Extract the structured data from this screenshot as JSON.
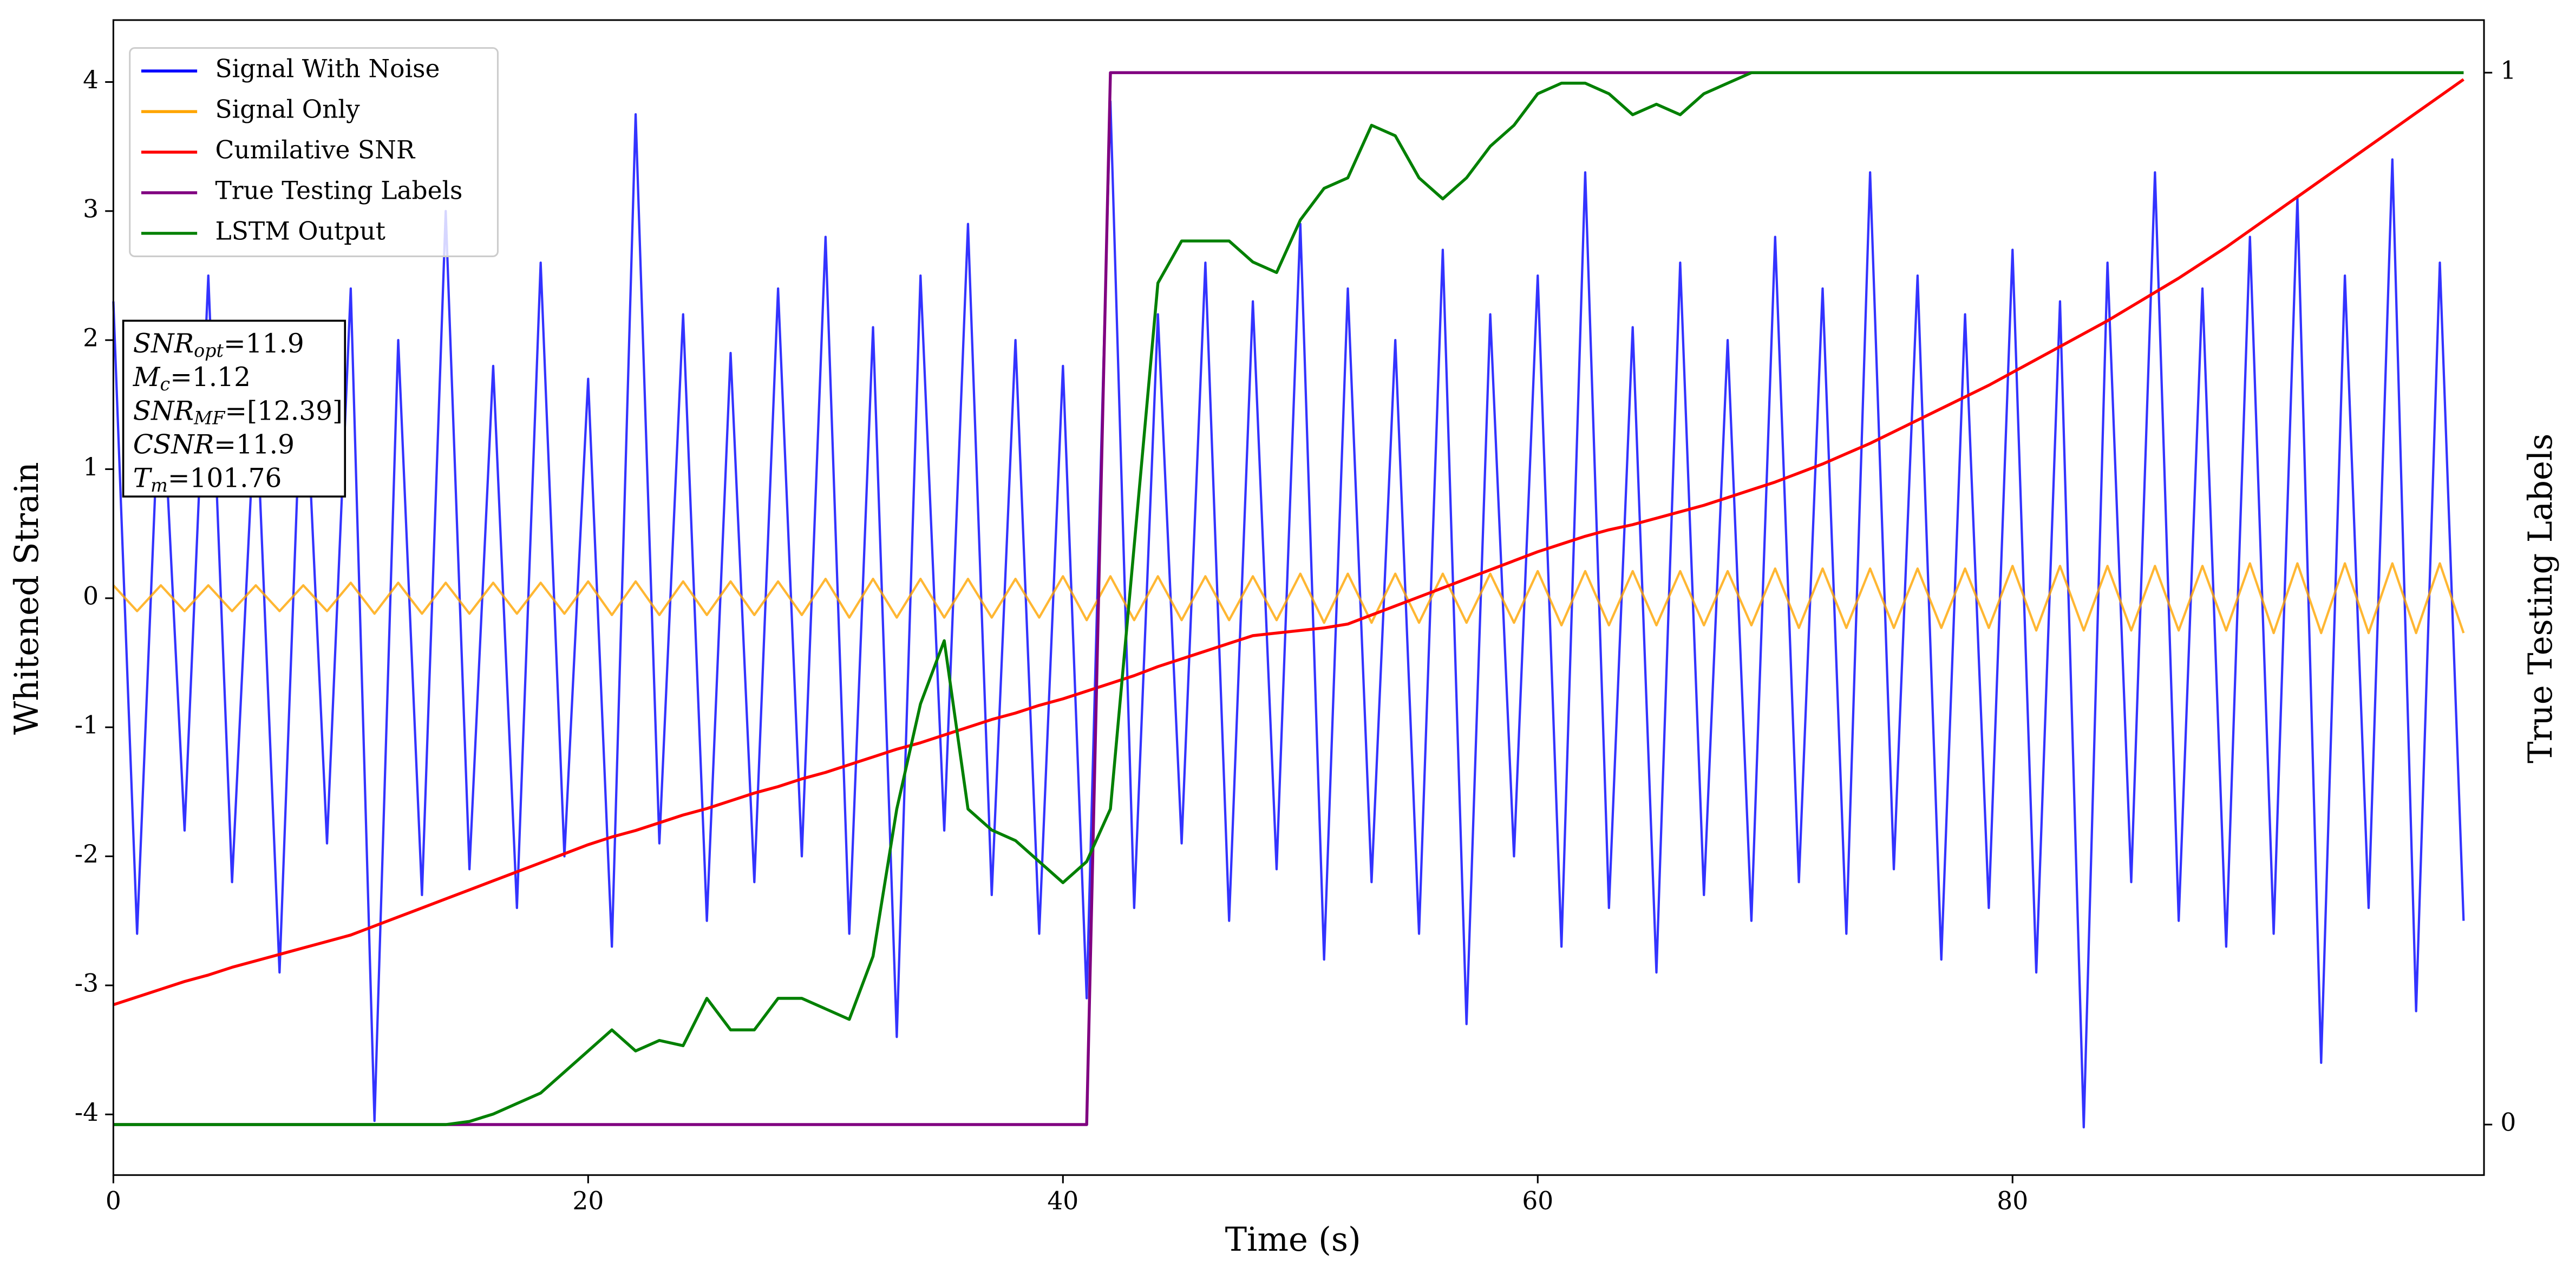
{
  "chart_data": {
    "type": "line",
    "xlabel": "Time (s)",
    "ylabel": "Whitened Strain",
    "y2label": "True Testing Labels",
    "xlim": [
      0,
      99.86
    ],
    "xticks": [
      0,
      20,
      40,
      60,
      80
    ],
    "ylim": [
      -4.47,
      4.48
    ],
    "yticks": [
      -4,
      -3,
      -2,
      -1,
      0,
      1,
      2,
      3,
      4
    ],
    "y2lim": [
      -0.048,
      1.05
    ],
    "y2ticks": [
      0,
      1
    ],
    "legend": "upper left",
    "x": [
      0,
      1,
      2,
      3,
      4,
      5,
      6,
      7,
      8,
      9,
      10,
      11,
      12,
      13,
      14,
      15,
      16,
      17,
      18,
      19,
      20,
      21,
      22,
      23,
      24,
      25,
      26,
      27,
      28,
      29,
      30,
      31,
      32,
      33,
      34,
      35,
      36,
      37,
      38,
      39,
      40,
      41,
      42,
      43,
      44,
      45,
      46,
      47,
      48,
      49,
      50,
      51,
      52,
      53,
      54,
      55,
      56,
      57,
      58,
      59,
      60,
      61,
      62,
      63,
      64,
      65,
      66,
      67,
      68,
      69,
      70,
      71,
      72,
      73,
      74,
      75,
      76,
      77,
      78,
      79,
      80,
      81,
      82,
      83,
      84,
      85,
      86,
      87,
      88,
      89,
      90,
      91,
      92,
      93,
      94,
      95,
      96,
      97,
      98,
      99
    ],
    "series": [
      {
        "name": "Signal With Noise",
        "color": "blue",
        "axis": "y",
        "values": [
          2.3,
          -2.6,
          1.9,
          -1.8,
          2.5,
          -2.2,
          1.6,
          -2.9,
          2.1,
          -1.9,
          2.4,
          -4.05,
          2.0,
          -2.3,
          3.0,
          -2.1,
          1.8,
          -2.4,
          2.6,
          -2.0,
          1.7,
          -2.7,
          3.75,
          -1.9,
          2.2,
          -2.5,
          1.9,
          -2.2,
          2.4,
          -2.0,
          2.8,
          -2.6,
          2.1,
          -3.4,
          2.5,
          -1.8,
          2.9,
          -2.3,
          2.0,
          -2.6,
          1.8,
          -3.1,
          3.85,
          -2.4,
          2.2,
          -1.9,
          2.6,
          -2.5,
          2.3,
          -2.1,
          2.9,
          -2.8,
          2.4,
          -2.2,
          2.0,
          -2.6,
          2.7,
          -3.3,
          2.2,
          -2.0,
          2.5,
          -2.7,
          3.3,
          -2.4,
          2.1,
          -2.9,
          2.6,
          -2.3,
          2.0,
          -2.5,
          2.8,
          -2.2,
          2.4,
          -2.6,
          3.3,
          -2.1,
          2.5,
          -2.8,
          2.2,
          -2.4,
          2.7,
          -2.9,
          2.3,
          -4.1,
          2.6,
          -2.2,
          3.3,
          -2.5,
          2.4,
          -2.7,
          2.8,
          -2.6,
          3.1,
          -3.6,
          2.5,
          -2.4,
          3.4,
          -3.2,
          2.6,
          -2.5
        ]
      },
      {
        "name": "Signal Only",
        "color": "orange",
        "axis": "y",
        "values": [
          0.1,
          -0.1,
          0.1,
          -0.1,
          0.1,
          -0.1,
          0.1,
          -0.1,
          0.1,
          -0.1,
          0.12,
          -0.12,
          0.12,
          -0.12,
          0.12,
          -0.12,
          0.12,
          -0.12,
          0.12,
          -0.12,
          0.13,
          -0.13,
          0.13,
          -0.13,
          0.13,
          -0.13,
          0.13,
          -0.13,
          0.13,
          -0.13,
          0.15,
          -0.15,
          0.15,
          -0.15,
          0.15,
          -0.15,
          0.15,
          -0.15,
          0.15,
          -0.15,
          0.17,
          -0.17,
          0.17,
          -0.17,
          0.17,
          -0.17,
          0.17,
          -0.17,
          0.17,
          -0.17,
          0.19,
          -0.19,
          0.19,
          -0.19,
          0.19,
          -0.19,
          0.19,
          -0.19,
          0.19,
          -0.19,
          0.21,
          -0.21,
          0.21,
          -0.21,
          0.21,
          -0.21,
          0.21,
          -0.21,
          0.21,
          -0.21,
          0.23,
          -0.23,
          0.23,
          -0.23,
          0.23,
          -0.23,
          0.23,
          -0.23,
          0.23,
          -0.23,
          0.25,
          -0.25,
          0.25,
          -0.25,
          0.25,
          -0.25,
          0.25,
          -0.25,
          0.25,
          -0.25,
          0.27,
          -0.27,
          0.27,
          -0.27,
          0.27,
          -0.27,
          0.27,
          -0.27,
          0.27,
          -0.27
        ]
      },
      {
        "name": "Cumilative SNR",
        "color": "red",
        "axis": "y",
        "values": [
          -3.15,
          -3.09,
          -3.03,
          -2.97,
          -2.92,
          -2.86,
          -2.81,
          -2.76,
          -2.71,
          -2.66,
          -2.61,
          -2.54,
          -2.47,
          -2.4,
          -2.33,
          -2.26,
          -2.19,
          -2.12,
          -2.05,
          -1.98,
          -1.91,
          -1.85,
          -1.8,
          -1.74,
          -1.68,
          -1.63,
          -1.57,
          -1.51,
          -1.46,
          -1.4,
          -1.35,
          -1.29,
          -1.23,
          -1.17,
          -1.12,
          -1.06,
          -1.0,
          -0.94,
          -0.89,
          -0.83,
          -0.78,
          -0.72,
          -0.66,
          -0.6,
          -0.53,
          -0.47,
          -0.41,
          -0.35,
          -0.29,
          -0.27,
          -0.25,
          -0.23,
          -0.2,
          -0.13,
          -0.06,
          0.01,
          0.08,
          0.15,
          0.22,
          0.29,
          0.36,
          0.42,
          0.48,
          0.53,
          0.57,
          0.62,
          0.67,
          0.72,
          0.78,
          0.84,
          0.9,
          0.97,
          1.04,
          1.12,
          1.2,
          1.29,
          1.38,
          1.47,
          1.56,
          1.65,
          1.75,
          1.85,
          1.95,
          2.05,
          2.15,
          2.26,
          2.37,
          2.48,
          2.6,
          2.72,
          2.85,
          2.98,
          3.11,
          3.24,
          3.37,
          3.5,
          3.63,
          3.76,
          3.89,
          4.02
        ]
      },
      {
        "name": "True Testing Labels",
        "color": "purple",
        "axis": "y2",
        "values": [
          0,
          0,
          0,
          0,
          0,
          0,
          0,
          0,
          0,
          0,
          0,
          0,
          0,
          0,
          0,
          0,
          0,
          0,
          0,
          0,
          0,
          0,
          0,
          0,
          0,
          0,
          0,
          0,
          0,
          0,
          0,
          0,
          0,
          0,
          0,
          0,
          0,
          0,
          0,
          0,
          0,
          0,
          1,
          1,
          1,
          1,
          1,
          1,
          1,
          1,
          1,
          1,
          1,
          1,
          1,
          1,
          1,
          1,
          1,
          1,
          1,
          1,
          1,
          1,
          1,
          1,
          1,
          1,
          1,
          1,
          1,
          1,
          1,
          1,
          1,
          1,
          1,
          1,
          1,
          1,
          1,
          1,
          1,
          1,
          1,
          1,
          1,
          1,
          1,
          1,
          1,
          1,
          1,
          1,
          1,
          1,
          1,
          1,
          1,
          1
        ]
      },
      {
        "name": "LSTM Output",
        "color": "green",
        "axis": "y2",
        "values": [
          0,
          0,
          0,
          0,
          0,
          0,
          0,
          0,
          0,
          0,
          0,
          0,
          0,
          0,
          0,
          0.003,
          0.01,
          0.02,
          0.03,
          0.05,
          0.07,
          0.09,
          0.07,
          0.08,
          0.075,
          0.12,
          0.09,
          0.09,
          0.12,
          0.12,
          0.11,
          0.1,
          0.16,
          0.3,
          0.4,
          0.46,
          0.3,
          0.28,
          0.27,
          0.25,
          0.23,
          0.25,
          0.3,
          0.55,
          0.8,
          0.84,
          0.84,
          0.84,
          0.82,
          0.81,
          0.86,
          0.89,
          0.9,
          0.95,
          0.94,
          0.9,
          0.88,
          0.9,
          0.93,
          0.95,
          0.98,
          0.99,
          0.99,
          0.98,
          0.96,
          0.97,
          0.96,
          0.98,
          0.99,
          1.0,
          1,
          1,
          1,
          1,
          1,
          1,
          1,
          1,
          1,
          1,
          1,
          1,
          1,
          1,
          1,
          1,
          1,
          1,
          1,
          1,
          1,
          1,
          1,
          1,
          1,
          1,
          1,
          1,
          1,
          1
        ]
      }
    ],
    "annotation": [
      {
        "text": "SNR",
        "sub": "opt",
        "after": "=11.9"
      },
      {
        "text": "M",
        "sub": "c",
        "after": "=1.12"
      },
      {
        "text": "SNR",
        "sub": "MF",
        "after": "=[12.39]"
      },
      {
        "text": "CSNR",
        "after": "=11.9"
      },
      {
        "text": "T",
        "sub": "m",
        "after": "=101.76"
      }
    ]
  }
}
